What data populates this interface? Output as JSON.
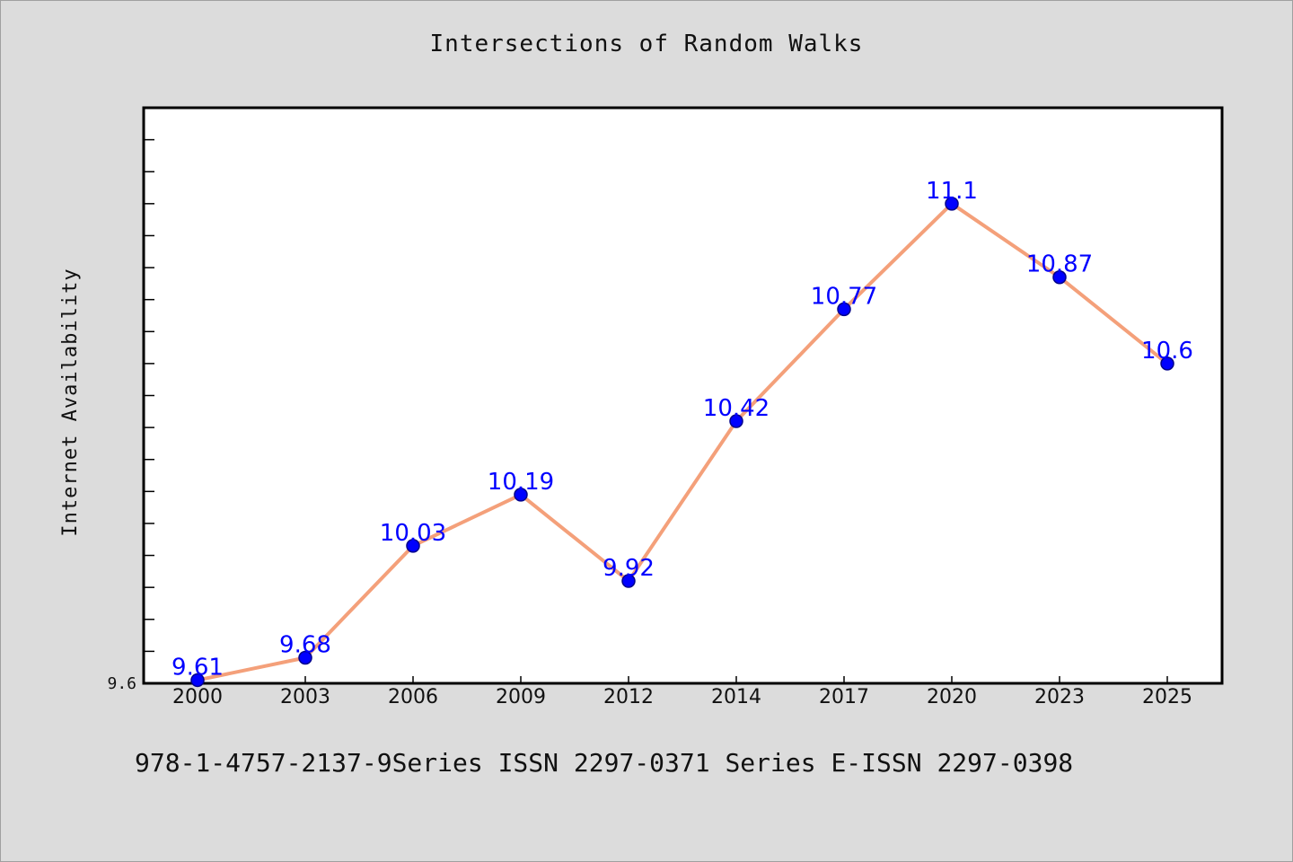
{
  "title": "Intersections of Random Walks",
  "footer": "978-1-4757-2137-9Series ISSN 2297-0371 Series E-ISSN 2297-0398",
  "colors": {
    "line": "#f4a07a",
    "marker": "#0000ff",
    "marker_edge": "#00008b",
    "label": "#0000ff",
    "plot_bg": "#ffffff",
    "page_bg": "#dcdcdc"
  },
  "chart_data": {
    "type": "line",
    "title": "Intersections of Random Walks",
    "xlabel": "",
    "ylabel": "Internet Availability",
    "categories": [
      "2000",
      "2003",
      "2006",
      "2009",
      "2012",
      "2014",
      "2017",
      "2020",
      "2023",
      "2025"
    ],
    "series": [
      {
        "values": [
          9.61,
          9.68,
          10.03,
          10.19,
          9.92,
          10.42,
          10.77,
          11.1,
          10.87,
          10.6
        ],
        "labels": [
          "9.61",
          "9.68",
          "10.03",
          "10.19",
          "9.92",
          "10.42",
          "10.77",
          "11.1",
          "10.87",
          "10.6"
        ]
      }
    ],
    "yticks": [
      {
        "value": 9.6,
        "label": "9.6"
      }
    ],
    "ylim": [
      9.6,
      11.4
    ],
    "grid": false,
    "legend": "none"
  }
}
